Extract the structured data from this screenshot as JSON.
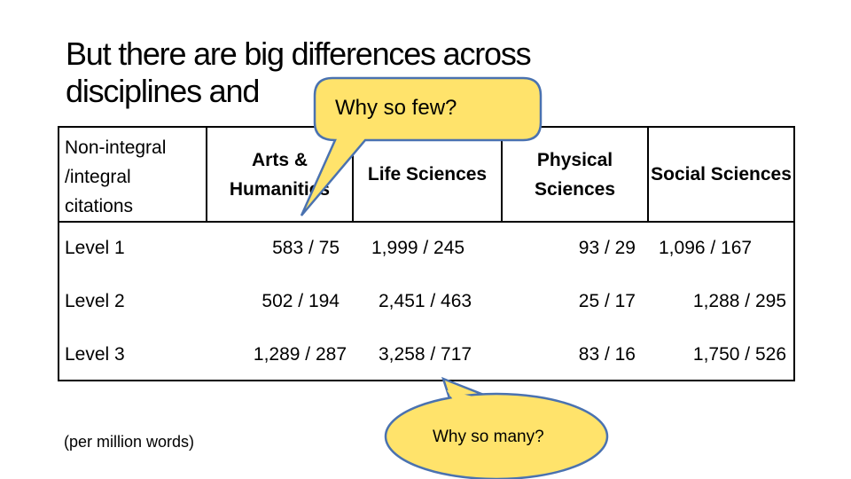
{
  "title": [
    "But there are big differences across",
    "disciplines and"
  ],
  "table": {
    "header": [
      "Non-integral /integral citations",
      "Arts & Humanities",
      "Life Sciences",
      "Physical Sciences",
      "Social Sciences"
    ],
    "rows": [
      [
        "Level 1",
        "583 / 75",
        "1,999 / 245",
        "93 / 29",
        "1,096 / 167"
      ],
      [
        "Level 2",
        "502 / 194",
        "2,451 / 463",
        "25 / 17",
        "1,288 / 295"
      ],
      [
        "Level 3",
        "1,289 / 287",
        "3,258 / 717",
        "83 / 16",
        "1,750 / 526"
      ]
    ]
  },
  "note": "(per million words)",
  "callouts": [
    "Why so few?",
    "Why so many?"
  ]
}
